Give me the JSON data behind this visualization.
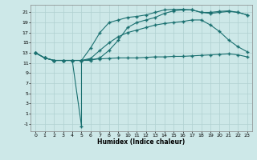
{
  "xlabel": "Humidex (Indice chaleur)",
  "ylabel": "",
  "xlim": [
    -0.5,
    23.5
  ],
  "ylim": [
    -2.5,
    22.5
  ],
  "xticks": [
    0,
    1,
    2,
    3,
    4,
    5,
    6,
    7,
    8,
    9,
    10,
    11,
    12,
    13,
    14,
    15,
    16,
    17,
    18,
    19,
    20,
    21,
    22,
    23
  ],
  "yticks": [
    -1,
    1,
    3,
    5,
    7,
    9,
    11,
    13,
    15,
    17,
    19,
    21
  ],
  "bg_color": "#cde8e8",
  "grid_color": "#b0d0d0",
  "line_color": "#1a7070",
  "line1_x": [
    0,
    1,
    2,
    3,
    4,
    5,
    6,
    7,
    8,
    9,
    10,
    11,
    12,
    13,
    14,
    15,
    16,
    17,
    18,
    19,
    20,
    21,
    22,
    23
  ],
  "line1_y": [
    13.0,
    12.0,
    11.5,
    11.5,
    11.5,
    11.5,
    11.7,
    11.8,
    11.9,
    12.0,
    12.0,
    12.0,
    12.1,
    12.2,
    12.2,
    12.3,
    12.3,
    12.4,
    12.5,
    12.6,
    12.7,
    12.8,
    12.6,
    12.2
  ],
  "line2_x": [
    0,
    1,
    2,
    3,
    4,
    5,
    6,
    7,
    8,
    9,
    10,
    11,
    12,
    13,
    14,
    15,
    16,
    17,
    18,
    19,
    20,
    21,
    22,
    23
  ],
  "line2_y": [
    13.0,
    12.0,
    11.5,
    11.5,
    11.5,
    11.5,
    11.9,
    13.5,
    15.0,
    16.2,
    17.0,
    17.5,
    18.0,
    18.5,
    18.8,
    19.0,
    19.2,
    19.5,
    19.5,
    18.5,
    17.2,
    15.5,
    14.2,
    13.2
  ],
  "line3_x": [
    0,
    1,
    2,
    3,
    4,
    5,
    6,
    7,
    8,
    9,
    10,
    11,
    12,
    13,
    14,
    15,
    16,
    17,
    18,
    19,
    20,
    21,
    22,
    23
  ],
  "line3_y": [
    13.0,
    12.0,
    11.5,
    11.5,
    11.5,
    11.5,
    14.0,
    17.0,
    19.0,
    19.5,
    20.0,
    20.2,
    20.5,
    21.0,
    21.5,
    21.6,
    21.6,
    21.5,
    21.0,
    20.8,
    21.0,
    21.2,
    21.0,
    20.5
  ],
  "line4_x": [
    0,
    1,
    2,
    3,
    4,
    5,
    5,
    6,
    7,
    8,
    9,
    10,
    11,
    12,
    13,
    14,
    15,
    16,
    17,
    18,
    19,
    20,
    21,
    22,
    23
  ],
  "line4_y": [
    13.0,
    12.0,
    11.5,
    11.5,
    11.5,
    -1.5,
    11.5,
    11.5,
    12.0,
    13.5,
    15.5,
    18.0,
    19.0,
    19.5,
    20.0,
    20.8,
    21.3,
    21.5,
    21.5,
    21.0,
    21.0,
    21.2,
    21.3,
    21.0,
    20.5
  ],
  "marker": "+",
  "markersize": 3,
  "linewidth": 0.8
}
